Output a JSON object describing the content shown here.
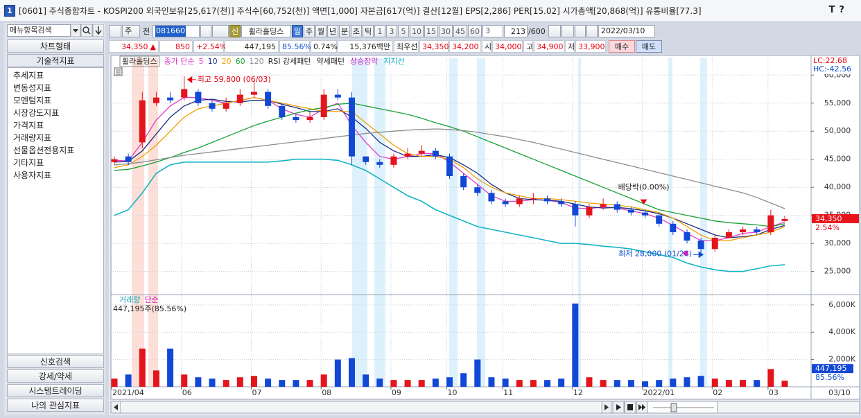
{
  "window": {
    "number": "1",
    "title": "[0601] 주식종합차트 - KOSPI200 외국인보유[25,617(천)] 주식수[60,752(천)] 액면[1,000] 자본금[617(억)] 결산[12월] EPS[2,286] PER[15.02] 시가총액[20,868(억)] 유통비율[77.3]",
    "controls": [
      "T",
      "?"
    ]
  },
  "sidebar": {
    "search": "메뉴항목검색",
    "chart_type": "차트형태",
    "indicators_header": "기술적지표",
    "tree": [
      "추세지표",
      "변동성지표",
      "모멘텀지표",
      "시장강도지표",
      "가격지표",
      "거래량지표",
      "선물옵션전용지표",
      "기타지표",
      "사용자지표"
    ],
    "buttons": [
      "신호검색",
      "강세/약세",
      "시스템트레이딩",
      "나의 관심지표"
    ]
  },
  "toolbar": {
    "period_type": "주",
    "market": "전",
    "code": "081660",
    "badge": "신",
    "stock_name": "휠라홀딩스",
    "periods": [
      "일",
      "주",
      "월",
      "년",
      "분",
      "초",
      "틱"
    ],
    "intervals": [
      "1",
      "3",
      "5",
      "10",
      "15",
      "30",
      "45",
      "60"
    ],
    "multiplier": "3",
    "count": "213",
    "max_count": "/600",
    "date": "2022/03/10"
  },
  "quote": {
    "price": "34,350",
    "arrow": "▲",
    "change": "850",
    "change_rate": "+2.54%",
    "volume": "447,195",
    "volume_ratio": "85.56%",
    "turnover": "0.74%",
    "amount": "15,376백만",
    "best_label": "최우선",
    "ask": "34,350",
    "bid": "34,200",
    "open_label": "시",
    "open": "34,000",
    "high_label": "고",
    "high": "34,900",
    "low_label": "저",
    "low": "33,900",
    "buy": "매수",
    "sell": "매도"
  },
  "chart_data": [
    {
      "type": "candlestick",
      "name": "휠라홀딩스",
      "legend_label": "종가 단순",
      "categories": [
        "2021/04",
        null,
        null,
        null,
        null,
        "06",
        null,
        null,
        null,
        null,
        "07",
        null,
        null,
        null,
        null,
        "08",
        null,
        null,
        null,
        null,
        "09",
        null,
        null,
        null,
        "10",
        null,
        null,
        null,
        "11",
        null,
        null,
        null,
        null,
        "12",
        null,
        null,
        null,
        null,
        "2022/01",
        null,
        null,
        null,
        null,
        "02",
        null,
        null,
        null,
        "03",
        null
      ],
      "open": [
        44500,
        45500,
        48000,
        55000,
        56000,
        56000,
        57000,
        55000,
        54000,
        55000,
        56500,
        57000,
        54500,
        52500,
        52000,
        52500,
        56500,
        56000,
        45500,
        44500,
        44000,
        45500,
        46000,
        46500,
        45500,
        42000,
        40000,
        39000,
        37500,
        37000,
        38000,
        38000,
        37500,
        37000,
        35000,
        36500,
        37000,
        36000,
        35500,
        35000,
        33500,
        32000,
        30500,
        29000,
        31000,
        32000,
        32500,
        32000,
        34000
      ],
      "high": [
        45500,
        46000,
        57000,
        57000,
        57000,
        59800,
        57500,
        55500,
        56000,
        57500,
        59000,
        57500,
        55000,
        53000,
        53500,
        57500,
        57500,
        57000,
        45500,
        45000,
        46000,
        47000,
        47500,
        47000,
        46000,
        42500,
        40500,
        39500,
        38000,
        38500,
        39000,
        38500,
        38000,
        37500,
        37000,
        38000,
        37500,
        36500,
        36000,
        35500,
        34000,
        32500,
        31000,
        31500,
        32500,
        33000,
        33000,
        36000,
        34900
      ],
      "low": [
        44000,
        44000,
        47000,
        54500,
        55000,
        55500,
        54500,
        53500,
        53500,
        54500,
        56000,
        54000,
        52000,
        51500,
        51500,
        52000,
        55500,
        44000,
        44000,
        43500,
        43500,
        45000,
        45500,
        45000,
        41500,
        39500,
        38500,
        37000,
        36500,
        36500,
        37000,
        37000,
        36500,
        33000,
        34500,
        36000,
        35500,
        35000,
        34500,
        33000,
        31500,
        30000,
        28000,
        28500,
        31000,
        31500,
        31500,
        31500,
        33900
      ],
      "close": [
        45000,
        44500,
        55500,
        56000,
        55500,
        57500,
        55000,
        54000,
        55000,
        56500,
        57000,
        54500,
        52500,
        52000,
        52500,
        56500,
        56000,
        45500,
        44500,
        44000,
        45500,
        46000,
        46500,
        45500,
        42000,
        40000,
        39000,
        37500,
        37000,
        38000,
        38000,
        37500,
        37000,
        35000,
        36500,
        37000,
        36000,
        35500,
        35000,
        33500,
        32000,
        30500,
        29000,
        31000,
        32000,
        32500,
        32000,
        35000,
        34350
      ],
      "up_color": "#e3141b",
      "down_color": "#1248d6",
      "series": [
        {
          "name": "5",
          "color": "#e03cc8",
          "values": [
            44800,
            44700,
            48000,
            52000,
            54500,
            56000,
            56000,
            55500,
            55000,
            55500,
            56000,
            55500,
            54000,
            53000,
            52500,
            54000,
            55000,
            51000,
            48000,
            45500,
            45000,
            45500,
            46000,
            46000,
            44500,
            42500,
            40500,
            38500,
            37500,
            37500,
            37800,
            37700,
            37300,
            36300,
            36200,
            36500,
            36300,
            35800,
            35300,
            34500,
            33200,
            31800,
            30500,
            30500,
            31000,
            31800,
            32000,
            33000,
            33800
          ]
        },
        {
          "name": "10",
          "color": "#1c2a80",
          "values": [
            44500,
            44600,
            46500,
            49500,
            52500,
            54500,
            55500,
            55700,
            55300,
            55200,
            55500,
            55500,
            54800,
            54200,
            53500,
            53500,
            54000,
            52500,
            50500,
            48000,
            46500,
            45500,
            45500,
            45800,
            45300,
            44000,
            42500,
            40500,
            39000,
            38000,
            37800,
            37700,
            37500,
            37000,
            36500,
            36300,
            36400,
            36200,
            35800,
            35300,
            34500,
            33500,
            32500,
            31500,
            31000,
            31200,
            31500,
            32500,
            33200
          ]
        },
        {
          "name": "20",
          "color": "#f0a000",
          "values": [
            43500,
            44000,
            45500,
            47500,
            50000,
            52500,
            54000,
            54500,
            55000,
            55500,
            56000,
            55500,
            55000,
            54500,
            54000,
            53500,
            53500,
            53500,
            51500,
            49500,
            47500,
            46000,
            45500,
            45500,
            45000,
            43500,
            41500,
            40000,
            39000,
            38500,
            38000,
            38000,
            37800,
            37500,
            37200,
            37000,
            36800,
            36500,
            36000,
            35500,
            34500,
            33000,
            31500,
            30500,
            30500,
            31000,
            31500,
            32000,
            33000
          ]
        },
        {
          "name": "60",
          "color": "#17a035",
          "values": [
            43000,
            43200,
            43800,
            44500,
            45300,
            46200,
            47000,
            48000,
            49000,
            50000,
            51000,
            51800,
            52500,
            53200,
            53800,
            54200,
            54800,
            55000,
            54500,
            54000,
            53500,
            53000,
            52300,
            51500,
            50800,
            50000,
            49000,
            48000,
            47000,
            46000,
            45000,
            44000,
            43000,
            42000,
            41000,
            40000,
            39000,
            38000,
            37000,
            36000,
            35500,
            35000,
            34500,
            34000,
            33700,
            33500,
            33300,
            33000,
            33500
          ]
        },
        {
          "name": "120",
          "color": "#8c8c8c",
          "values": [
            44000,
            44200,
            44500,
            44900,
            45300,
            45700,
            46000,
            46300,
            46600,
            46900,
            47200,
            47500,
            47800,
            48100,
            48400,
            48700,
            49000,
            49300,
            49600,
            49800,
            50000,
            50200,
            50300,
            50400,
            50300,
            50100,
            49800,
            49400,
            49000,
            48500,
            48000,
            47400,
            46800,
            46200,
            45600,
            45000,
            44400,
            43800,
            43200,
            42600,
            42000,
            41400,
            40800,
            40200,
            39600,
            39000,
            38200,
            37200,
            36200
          ]
        },
        {
          "name": "지지선",
          "color": "#12b4c4",
          "values": [
            35000,
            36000,
            39000,
            42500,
            44000,
            44500,
            44500,
            44500,
            44500,
            44500,
            44500,
            44500,
            44700,
            45000,
            45000,
            45000,
            44800,
            44000,
            43000,
            41500,
            40000,
            38500,
            37500,
            36000,
            35000,
            34000,
            33000,
            32500,
            32000,
            31500,
            31000,
            30500,
            30000,
            30000,
            29800,
            29500,
            29300,
            29000,
            28500,
            28000,
            27500,
            26500,
            25800,
            25300,
            25000,
            25000,
            25500,
            26000,
            26200
          ]
        }
      ],
      "signals": [
        {
          "name": "RSI 강세패턴",
          "color": "#222222"
        },
        {
          "name": "약세패턴",
          "color": "#222222"
        },
        {
          "name": "상승장악",
          "color": "#d21fc0"
        }
      ],
      "ylim": [
        21000,
        63000
      ],
      "yticks": [
        {
          "value": 25000,
          "label": "25,000"
        },
        {
          "value": 30000,
          "label": "30,000"
        },
        {
          "value": 35000,
          "label": "35,000"
        },
        {
          "value": 40000,
          "label": "40,000"
        },
        {
          "value": 45000,
          "label": "45,000"
        },
        {
          "value": 50000,
          "label": "50,000"
        },
        {
          "value": 55000,
          "label": "55,000"
        },
        {
          "value": 60000,
          "label": "60,000"
        }
      ],
      "grid": true,
      "annotations": {
        "high": "최고 59,800 (06/03)",
        "low": "최저 28,000 (01/28)",
        "event": "배당락(0.00%)"
      },
      "indicators": {
        "lc": "LC:22.68",
        "hc": "HC:-42.56"
      },
      "last_price_label": "34,350",
      "last_change_label": "2.54%",
      "last_date_label": "03/10"
    },
    {
      "type": "bar",
      "name": "거래량",
      "name_color": "#12a0b4",
      "legend_label": "단순",
      "legend_color": "#d21fc0",
      "info": "447,195주(85.56%)",
      "values": [
        600,
        900,
        2800,
        1200,
        2800,
        900,
        700,
        600,
        500,
        700,
        800,
        600,
        500,
        500,
        500,
        900,
        2000,
        2100,
        900,
        600,
        500,
        500,
        500,
        600,
        700,
        1000,
        2000,
        700,
        600,
        500,
        500,
        500,
        600,
        6100,
        700,
        500,
        500,
        500,
        400,
        500,
        600,
        700,
        800,
        600,
        500,
        500,
        500,
        1300,
        447.195
      ],
      "ylim": [
        0,
        6600
      ],
      "yticks": [
        {
          "value": 2000,
          "label": "2,000K"
        },
        {
          "value": 4000,
          "label": "4,000K"
        },
        {
          "value": 6000,
          "label": "6,000K"
        }
      ],
      "grid": true,
      "last_value_label": "447,195",
      "last_ratio_label": "85.56%"
    }
  ]
}
